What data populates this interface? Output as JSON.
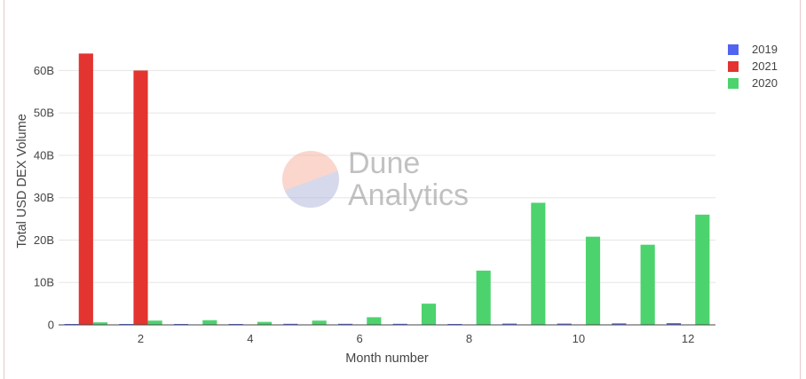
{
  "chart_data": {
    "type": "bar",
    "title": "",
    "xlabel": "Month number",
    "ylabel": "Total USD DEX Volume",
    "x": [
      1,
      2,
      3,
      4,
      5,
      6,
      7,
      8,
      9,
      10,
      11,
      12
    ],
    "x_ticks": [
      2,
      4,
      6,
      8,
      10,
      12
    ],
    "xlim": [
      0.5,
      12.5
    ],
    "ylim": [
      0,
      67
    ],
    "y_ticks": [
      0,
      10,
      20,
      30,
      40,
      50,
      60
    ],
    "y_tick_labels": [
      "0",
      "10B",
      "20B",
      "30B",
      "40B",
      "50B",
      "60B"
    ],
    "value_unit": "billions USD",
    "grid": true,
    "legend_position": "top-right",
    "series": [
      {
        "name": "2019",
        "color": "#5263f0",
        "values": [
          0.15,
          0.15,
          0.2,
          0.2,
          0.25,
          0.25,
          0.25,
          0.2,
          0.3,
          0.3,
          0.35,
          0.4
        ]
      },
      {
        "name": "2021",
        "color": "#e3342f",
        "values": [
          64,
          60,
          null,
          null,
          null,
          null,
          null,
          null,
          null,
          null,
          null,
          null
        ]
      },
      {
        "name": "2020",
        "color": "#4cd36e",
        "values": [
          0.6,
          1.0,
          1.1,
          0.7,
          1.0,
          1.8,
          5.0,
          12.8,
          28.8,
          20.8,
          18.9,
          26.0
        ]
      }
    ]
  },
  "watermark": {
    "line1": "Dune",
    "line2": "Analytics"
  }
}
